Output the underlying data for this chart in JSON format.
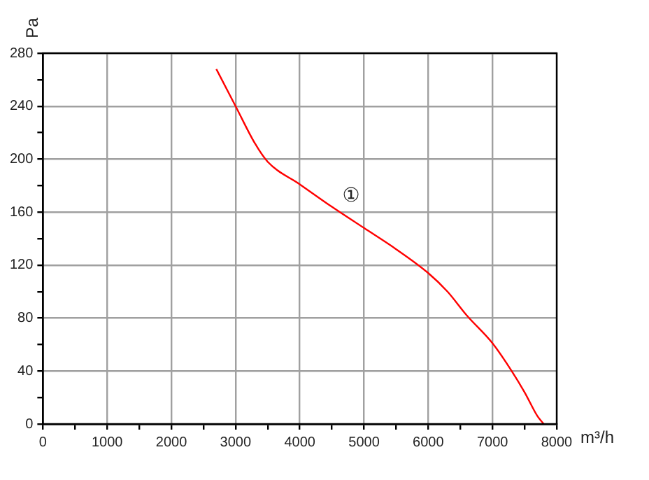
{
  "chart_data": {
    "type": "line",
    "xlabel": "m³/h",
    "ylabel": "Pa",
    "x": [
      2700,
      3000,
      3300,
      3500,
      4000,
      4500,
      5000,
      5500,
      6000,
      6300,
      6600,
      7000,
      7300,
      7500,
      7700,
      7800
    ],
    "series": [
      {
        "color": "#ff0000",
        "values": [
          268,
          240,
          212,
          198,
          181,
          164,
          148,
          132,
          114,
          100,
          82,
          61,
          40,
          24,
          6,
          0
        ]
      }
    ],
    "xlim": [
      0,
      8000
    ],
    "xticks": [
      0,
      {
        "value": 500,
        "label": null
      },
      1000,
      {
        "value": 1500,
        "label": null
      },
      2000,
      {
        "value": 2500,
        "label": null
      },
      3000,
      {
        "value": 3500,
        "label": null
      },
      4000,
      {
        "value": 4500,
        "label": null
      },
      5000,
      {
        "value": 5500,
        "label": null
      },
      6000,
      {
        "value": 6500,
        "label": null
      },
      7000,
      {
        "value": 7500,
        "label": null
      },
      8000
    ],
    "ylim": [
      0,
      280
    ],
    "yticks": [
      0,
      {
        "value": 20,
        "label": null
      },
      40,
      {
        "value": 60,
        "label": null
      },
      80,
      {
        "value": 100,
        "label": null
      },
      120,
      {
        "value": 140,
        "label": null
      },
      160,
      {
        "value": 180,
        "label": null
      },
      200,
      {
        "value": 220,
        "label": null
      },
      240,
      {
        "value": 260,
        "label": null
      },
      280
    ],
    "annotations": [
      "①"
    ],
    "grid": true,
    "legend": false,
    "marker": "none",
    "line_style": "solid"
  }
}
